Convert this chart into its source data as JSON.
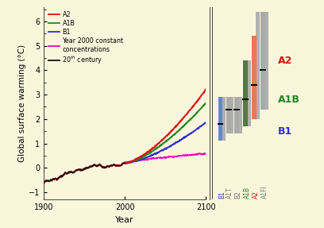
{
  "background_color": "#faf6dc",
  "xlim": [
    1900,
    2100
  ],
  "ylim": [
    -1.3,
    6.6
  ],
  "xlabel": "Year",
  "ylabel": "Global surface warming (°C)",
  "xticks": [
    1900,
    2000,
    2100
  ],
  "yticks": [
    -1.0,
    0.0,
    1.0,
    2.0,
    3.0,
    4.0,
    5.0,
    6.0
  ],
  "lines": {
    "A2": {
      "color": "#dd1111",
      "lw": 1.4
    },
    "A1B": {
      "color": "#228822",
      "lw": 1.4
    },
    "B1": {
      "color": "#3333cc",
      "lw": 1.4
    },
    "const": {
      "color": "#ee00bb",
      "lw": 1.0
    },
    "20th": {
      "color": "#111111",
      "lw": 0.9
    }
  },
  "legend_entries": [
    {
      "label": "A2",
      "color": "#dd1111"
    },
    {
      "label": "A1B",
      "color": "#228822"
    },
    {
      "label": "B1",
      "color": "#3333cc"
    },
    {
      "label": "Year 2000 constant\nconcentrations",
      "color": "#ee00bb"
    },
    {
      "label": "20$^{th}$ century",
      "color": "#111111"
    }
  ],
  "bar_data": [
    {
      "label": "B1",
      "label_color": "#3333cc",
      "col_color": "#6688cc",
      "col_lo": 1.1,
      "col_hi": 2.9,
      "gray_lo": 1.1,
      "gray_hi": 2.9,
      "mid": 1.8
    },
    {
      "label": "A1T",
      "label_color": "#888888",
      "col_color": "#aaaaaa",
      "col_lo": 1.4,
      "col_hi": 2.9,
      "gray_lo": 1.4,
      "gray_hi": 2.9,
      "mid": 2.4
    },
    {
      "label": "B2",
      "label_color": "#888888",
      "col_color": "#aaaaaa",
      "col_lo": 1.4,
      "col_hi": 2.9,
      "gray_lo": 1.4,
      "gray_hi": 2.9,
      "mid": 2.4
    },
    {
      "label": "A1B",
      "label_color": "#228822",
      "col_color": "#557744",
      "col_lo": 1.7,
      "col_hi": 4.4,
      "gray_lo": 1.7,
      "gray_hi": 4.4,
      "mid": 2.8
    },
    {
      "label": "A2",
      "label_color": "#dd1111",
      "col_color": "#ee7755",
      "col_lo": 2.0,
      "col_hi": 5.4,
      "gray_lo": 2.0,
      "gray_hi": 6.4,
      "mid": 3.4
    },
    {
      "label": "A1FI",
      "label_color": "#888888",
      "col_color": "#aaaaaa",
      "col_lo": 2.4,
      "col_hi": 6.4,
      "gray_lo": 2.4,
      "gray_hi": 6.4,
      "mid": 4.0
    }
  ],
  "right_labels": [
    {
      "text": "A2",
      "color": "#dd1111",
      "y": 4.4
    },
    {
      "text": "A1B",
      "color": "#228822",
      "y": 2.8
    },
    {
      "text": "B1",
      "color": "#3333cc",
      "y": 1.5
    }
  ]
}
